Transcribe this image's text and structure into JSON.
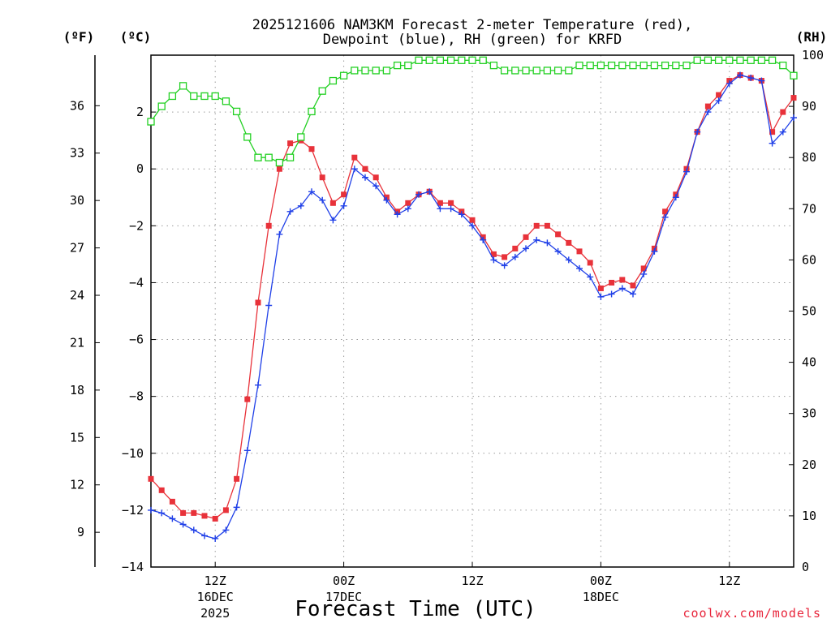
{
  "chart_data": {
    "type": "line",
    "title_line1": "2025121606 NAM3KM Forecast 2-meter Temperature (red),",
    "title_line2": "Dewpoint (blue), RH (green) for KRFD",
    "xlabel": "Forecast Time (UTC)",
    "credit": "coolwx.com/models",
    "unit_f": "(ºF)",
    "unit_c": "(ºC)",
    "unit_rh": "(RH)",
    "xlim": [
      6,
      66
    ],
    "ylim_c": [
      -14,
      4
    ],
    "ylim_rh": [
      0,
      100
    ],
    "x_ticks": [
      {
        "x": 12,
        "line1": "12Z",
        "line2": "16DEC",
        "line3": "2025"
      },
      {
        "x": 24,
        "line1": "00Z",
        "line2": "17DEC",
        "line3": ""
      },
      {
        "x": 36,
        "line1": "12Z",
        "line2": "",
        "line3": ""
      },
      {
        "x": 48,
        "line1": "00Z",
        "line2": "18DEC",
        "line3": ""
      },
      {
        "x": 60,
        "line1": "12Z",
        "line2": "",
        "line3": ""
      }
    ],
    "c_ticks": [
      "-14",
      "-12",
      "-10",
      "-8",
      "-6",
      "-4",
      "-2",
      "0",
      "2"
    ],
    "f_ticks": [
      "9",
      "12",
      "15",
      "18",
      "21",
      "24",
      "27",
      "30",
      "33",
      "36"
    ],
    "rh_ticks": [
      "0",
      "10",
      "20",
      "30",
      "40",
      "50",
      "60",
      "70",
      "80",
      "90",
      "100"
    ],
    "series": [
      {
        "name": "Temperature (°C)",
        "color": "#e8323a",
        "marker": "filled-square",
        "axis": "c",
        "x": [
          6,
          7,
          8,
          9,
          10,
          11,
          12,
          13,
          14,
          15,
          16,
          17,
          18,
          19,
          20,
          21,
          22,
          23,
          24,
          25,
          26,
          27,
          28,
          29,
          30,
          31,
          32,
          33,
          34,
          35,
          36,
          37,
          38,
          39,
          40,
          41,
          42,
          43,
          44,
          45,
          46,
          47,
          48,
          49,
          50,
          51,
          52,
          53,
          54,
          55,
          56,
          57,
          58,
          59,
          60,
          61,
          62,
          63,
          64,
          65,
          66
        ],
        "values": [
          -10.9,
          -11.3,
          -11.7,
          -12.1,
          -12.1,
          -12.2,
          -12.3,
          -12.0,
          -10.9,
          -8.1,
          -4.7,
          -2.0,
          0.0,
          0.9,
          1.0,
          0.7,
          -0.3,
          -1.2,
          -0.9,
          0.4,
          0.0,
          -0.3,
          -1.0,
          -1.5,
          -1.2,
          -0.9,
          -0.8,
          -1.2,
          -1.2,
          -1.5,
          -1.8,
          -2.4,
          -3.0,
          -3.1,
          -2.8,
          -2.4,
          -2.0,
          -2.0,
          -2.3,
          -2.6,
          -2.9,
          -3.3,
          -4.2,
          -4.0,
          -3.9,
          -4.1,
          -3.5,
          -2.8,
          -1.5,
          -0.9,
          0.0,
          1.3,
          2.2,
          2.6,
          3.1,
          3.3,
          3.2,
          3.1,
          1.3,
          2.0,
          2.5
        ]
      },
      {
        "name": "Dewpoint (°C)",
        "color": "#2040e8",
        "marker": "plus",
        "axis": "c",
        "x": [
          6,
          7,
          8,
          9,
          10,
          11,
          12,
          13,
          14,
          15,
          16,
          17,
          18,
          19,
          20,
          21,
          22,
          23,
          24,
          25,
          26,
          27,
          28,
          29,
          30,
          31,
          32,
          33,
          34,
          35,
          36,
          37,
          38,
          39,
          40,
          41,
          42,
          43,
          44,
          45,
          46,
          47,
          48,
          49,
          50,
          51,
          52,
          53,
          54,
          55,
          56,
          57,
          58,
          59,
          60,
          61,
          62,
          63,
          64,
          65,
          66
        ],
        "values": [
          -12.0,
          -12.1,
          -12.3,
          -12.5,
          -12.7,
          -12.9,
          -13.0,
          -12.7,
          -11.9,
          -9.9,
          -7.6,
          -4.8,
          -2.3,
          -1.5,
          -1.3,
          -0.8,
          -1.1,
          -1.8,
          -1.3,
          0.0,
          -0.3,
          -0.6,
          -1.1,
          -1.6,
          -1.4,
          -0.9,
          -0.8,
          -1.4,
          -1.4,
          -1.6,
          -2.0,
          -2.5,
          -3.2,
          -3.4,
          -3.1,
          -2.8,
          -2.5,
          -2.6,
          -2.9,
          -3.2,
          -3.5,
          -3.8,
          -4.5,
          -4.4,
          -4.2,
          -4.4,
          -3.7,
          -2.9,
          -1.7,
          -1.0,
          -0.1,
          1.3,
          2.0,
          2.4,
          3.0,
          3.3,
          3.2,
          3.1,
          0.9,
          1.3,
          1.8
        ]
      },
      {
        "name": "RH (%)",
        "color": "#22d022",
        "marker": "open-square",
        "axis": "rh",
        "x": [
          6,
          7,
          8,
          9,
          10,
          11,
          12,
          13,
          14,
          15,
          16,
          17,
          18,
          19,
          20,
          21,
          22,
          23,
          24,
          25,
          26,
          27,
          28,
          29,
          30,
          31,
          32,
          33,
          34,
          35,
          36,
          37,
          38,
          39,
          40,
          41,
          42,
          43,
          44,
          45,
          46,
          47,
          48,
          49,
          50,
          51,
          52,
          53,
          54,
          55,
          56,
          57,
          58,
          59,
          60,
          61,
          62,
          63,
          64,
          65,
          66
        ],
        "values": [
          87,
          90,
          92,
          94,
          92,
          92,
          92,
          91,
          89,
          84,
          80,
          80,
          79,
          80,
          84,
          89,
          93,
          95,
          96,
          97,
          97,
          97,
          97,
          98,
          98,
          99,
          99,
          99,
          99,
          99,
          99,
          99,
          98,
          97,
          97,
          97,
          97,
          97,
          97,
          97,
          98,
          98,
          98,
          98,
          98,
          98,
          98,
          98,
          98,
          98,
          98,
          99,
          99,
          99,
          99,
          99,
          99,
          99,
          99,
          98,
          96
        ]
      }
    ]
  }
}
